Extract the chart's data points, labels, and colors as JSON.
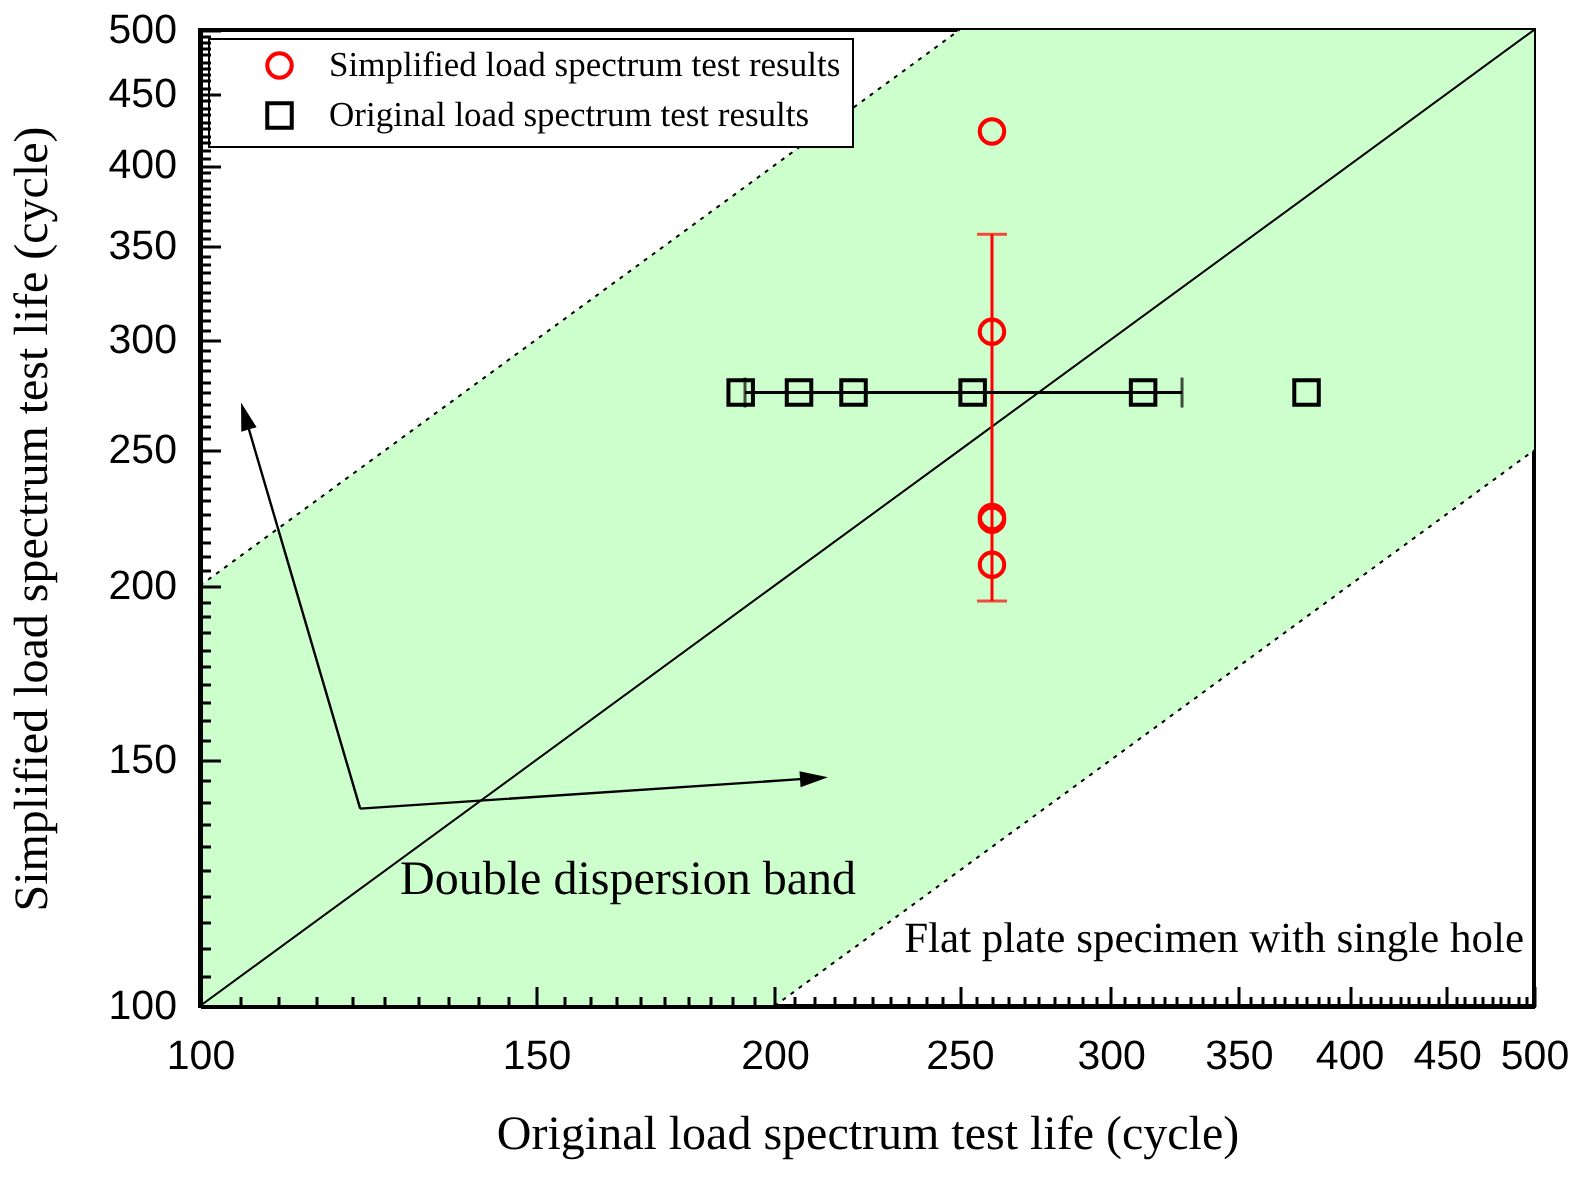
{
  "chart_data": {
    "type": "scatter",
    "xlabel": "Original load spectrum test life (cycle)",
    "ylabel": "Simplified load spectrum test life (cycle)",
    "annotations": [
      "Double dispersion band",
      "Flat plate specimen with single hole"
    ],
    "log": "xy",
    "grid": false,
    "legend": "top left",
    "xlim": [
      100,
      500
    ],
    "ylim": [
      100,
      500
    ],
    "xticks": [
      100,
      {
        "value": 105,
        "label": null
      },
      {
        "value": 110,
        "label": null
      },
      {
        "value": 115,
        "label": null
      },
      {
        "value": 120,
        "label": null
      },
      {
        "value": 125,
        "label": null
      },
      {
        "value": 130,
        "label": null
      },
      {
        "value": 135,
        "label": null
      },
      {
        "value": 140,
        "label": null
      },
      {
        "value": 145,
        "label": null
      },
      150,
      {
        "value": 155,
        "label": null
      },
      {
        "value": 160,
        "label": null
      },
      {
        "value": 165,
        "label": null
      },
      {
        "value": 170,
        "label": null
      },
      {
        "value": 175,
        "label": null
      },
      {
        "value": 180,
        "label": null
      },
      {
        "value": 185,
        "label": null
      },
      {
        "value": 190,
        "label": null
      },
      {
        "value": 195,
        "label": null
      },
      200,
      {
        "value": 205,
        "label": null
      },
      {
        "value": 210,
        "label": null
      },
      {
        "value": 215,
        "label": null
      },
      {
        "value": 220,
        "label": null
      },
      {
        "value": 225,
        "label": null
      },
      {
        "value": 230,
        "label": null
      },
      {
        "value": 235,
        "label": null
      },
      {
        "value": 240,
        "label": null
      },
      {
        "value": 245,
        "label": null
      },
      250,
      {
        "value": 255,
        "label": null
      },
      {
        "value": 260,
        "label": null
      },
      {
        "value": 265,
        "label": null
      },
      {
        "value": 270,
        "label": null
      },
      {
        "value": 275,
        "label": null
      },
      {
        "value": 280,
        "label": null
      },
      {
        "value": 285,
        "label": null
      },
      {
        "value": 290,
        "label": null
      },
      {
        "value": 295,
        "label": null
      },
      300,
      {
        "value": 305,
        "label": null
      },
      {
        "value": 310,
        "label": null
      },
      {
        "value": 315,
        "label": null
      },
      {
        "value": 320,
        "label": null
      },
      {
        "value": 325,
        "label": null
      },
      {
        "value": 330,
        "label": null
      },
      {
        "value": 335,
        "label": null
      },
      {
        "value": 340,
        "label": null
      },
      {
        "value": 345,
        "label": null
      },
      350,
      {
        "value": 355,
        "label": null
      },
      {
        "value": 360,
        "label": null
      },
      {
        "value": 365,
        "label": null
      },
      {
        "value": 370,
        "label": null
      },
      {
        "value": 375,
        "label": null
      },
      {
        "value": 380,
        "label": null
      },
      {
        "value": 385,
        "label": null
      },
      {
        "value": 390,
        "label": null
      },
      {
        "value": 395,
        "label": null
      },
      400,
      {
        "value": 405,
        "label": null
      },
      {
        "value": 410,
        "label": null
      },
      {
        "value": 415,
        "label": null
      },
      {
        "value": 420,
        "label": null
      },
      {
        "value": 425,
        "label": null
      },
      {
        "value": 430,
        "label": null
      },
      {
        "value": 435,
        "label": null
      },
      {
        "value": 440,
        "label": null
      },
      {
        "value": 445,
        "label": null
      },
      450,
      {
        "value": 455,
        "label": null
      },
      {
        "value": 460,
        "label": null
      },
      {
        "value": 465,
        "label": null
      },
      {
        "value": 470,
        "label": null
      },
      {
        "value": 475,
        "label": null
      },
      {
        "value": 480,
        "label": null
      },
      {
        "value": 485,
        "label": null
      },
      {
        "value": 490,
        "label": null
      },
      {
        "value": 495,
        "label": null
      },
      500
    ],
    "yticks": [
      100,
      {
        "value": 105,
        "label": null
      },
      {
        "value": 110,
        "label": null
      },
      {
        "value": 115,
        "label": null
      },
      {
        "value": 120,
        "label": null
      },
      {
        "value": 125,
        "label": null
      },
      {
        "value": 130,
        "label": null
      },
      {
        "value": 135,
        "label": null
      },
      {
        "value": 140,
        "label": null
      },
      {
        "value": 145,
        "label": null
      },
      150,
      {
        "value": 155,
        "label": null
      },
      {
        "value": 160,
        "label": null
      },
      {
        "value": 165,
        "label": null
      },
      {
        "value": 170,
        "label": null
      },
      {
        "value": 175,
        "label": null
      },
      {
        "value": 180,
        "label": null
      },
      {
        "value": 185,
        "label": null
      },
      {
        "value": 190,
        "label": null
      },
      {
        "value": 195,
        "label": null
      },
      200,
      {
        "value": 205,
        "label": null
      },
      {
        "value": 210,
        "label": null
      },
      {
        "value": 215,
        "label": null
      },
      {
        "value": 220,
        "label": null
      },
      {
        "value": 225,
        "label": null
      },
      {
        "value": 230,
        "label": null
      },
      {
        "value": 235,
        "label": null
      },
      {
        "value": 240,
        "label": null
      },
      {
        "value": 245,
        "label": null
      },
      250,
      {
        "value": 255,
        "label": null
      },
      {
        "value": 260,
        "label": null
      },
      {
        "value": 265,
        "label": null
      },
      {
        "value": 270,
        "label": null
      },
      {
        "value": 275,
        "label": null
      },
      {
        "value": 280,
        "label": null
      },
      {
        "value": 285,
        "label": null
      },
      {
        "value": 290,
        "label": null
      },
      {
        "value": 295,
        "label": null
      },
      300,
      {
        "value": 305,
        "label": null
      },
      {
        "value": 310,
        "label": null
      },
      {
        "value": 315,
        "label": null
      },
      {
        "value": 320,
        "label": null
      },
      {
        "value": 325,
        "label": null
      },
      {
        "value": 330,
        "label": null
      },
      {
        "value": 335,
        "label": null
      },
      {
        "value": 340,
        "label": null
      },
      {
        "value": 345,
        "label": null
      },
      350,
      {
        "value": 355,
        "label": null
      },
      {
        "value": 360,
        "label": null
      },
      {
        "value": 365,
        "label": null
      },
      {
        "value": 370,
        "label": null
      },
      {
        "value": 375,
        "label": null
      },
      {
        "value": 380,
        "label": null
      },
      {
        "value": 385,
        "label": null
      },
      {
        "value": 390,
        "label": null
      },
      {
        "value": 395,
        "label": null
      },
      400,
      {
        "value": 405,
        "label": null
      },
      {
        "value": 410,
        "label": null
      },
      {
        "value": 415,
        "label": null
      },
      {
        "value": 420,
        "label": null
      },
      {
        "value": 425,
        "label": null
      },
      {
        "value": 430,
        "label": null
      },
      {
        "value": 435,
        "label": null
      },
      {
        "value": 440,
        "label": null
      },
      {
        "value": 445,
        "label": null
      },
      450,
      {
        "value": 455,
        "label": null
      },
      {
        "value": 460,
        "label": null
      },
      {
        "value": 465,
        "label": null
      },
      {
        "value": 470,
        "label": null
      },
      {
        "value": 475,
        "label": null
      },
      {
        "value": 480,
        "label": null
      },
      {
        "value": 485,
        "label": null
      },
      {
        "value": 490,
        "label": null
      },
      {
        "value": 495,
        "label": null
      },
      500
    ],
    "series": [
      {
        "type": "line",
        "color": "#000000",
        "line_style": "solid",
        "marker": "none",
        "x": [
          100,
          200,
          250,
          500
        ],
        "values": [
          100,
          200,
          250,
          500
        ],
        "lower": [
          100,
          100,
          125,
          250
        ],
        "upper": [
          200,
          400,
          500,
          500
        ]
      },
      {
        "type": "line",
        "color": "#000000",
        "line_style": "dotted",
        "marker": "none",
        "x": [
          100,
          250
        ],
        "values": [
          200,
          500
        ]
      },
      {
        "type": "line",
        "color": "#000000",
        "line_style": "dotted",
        "marker": "none",
        "x": [
          200,
          500
        ],
        "values": [
          100,
          250
        ]
      },
      {
        "name": "Simplified load spectrum test results",
        "color": "#ff0000",
        "marker": "circle",
        "x": [
          260,
          260,
          260,
          260,
          260
        ],
        "values": [
          423,
          304,
          224,
          223,
          207
        ],
        "errors": [
          null,
          [
            195,
            357
          ],
          null,
          null,
          null
        ]
      },
      {
        "name": "Original load spectrum test results",
        "color": "#000000",
        "marker": "square",
        "x": [
          192,
          206,
          220,
          254,
          312,
          380
        ],
        "values": [
          275,
          275,
          275,
          275,
          275,
          275
        ],
        "xerrors": [
          null,
          null,
          null,
          [
            193,
            327
          ],
          null,
          null
        ]
      }
    ]
  }
}
